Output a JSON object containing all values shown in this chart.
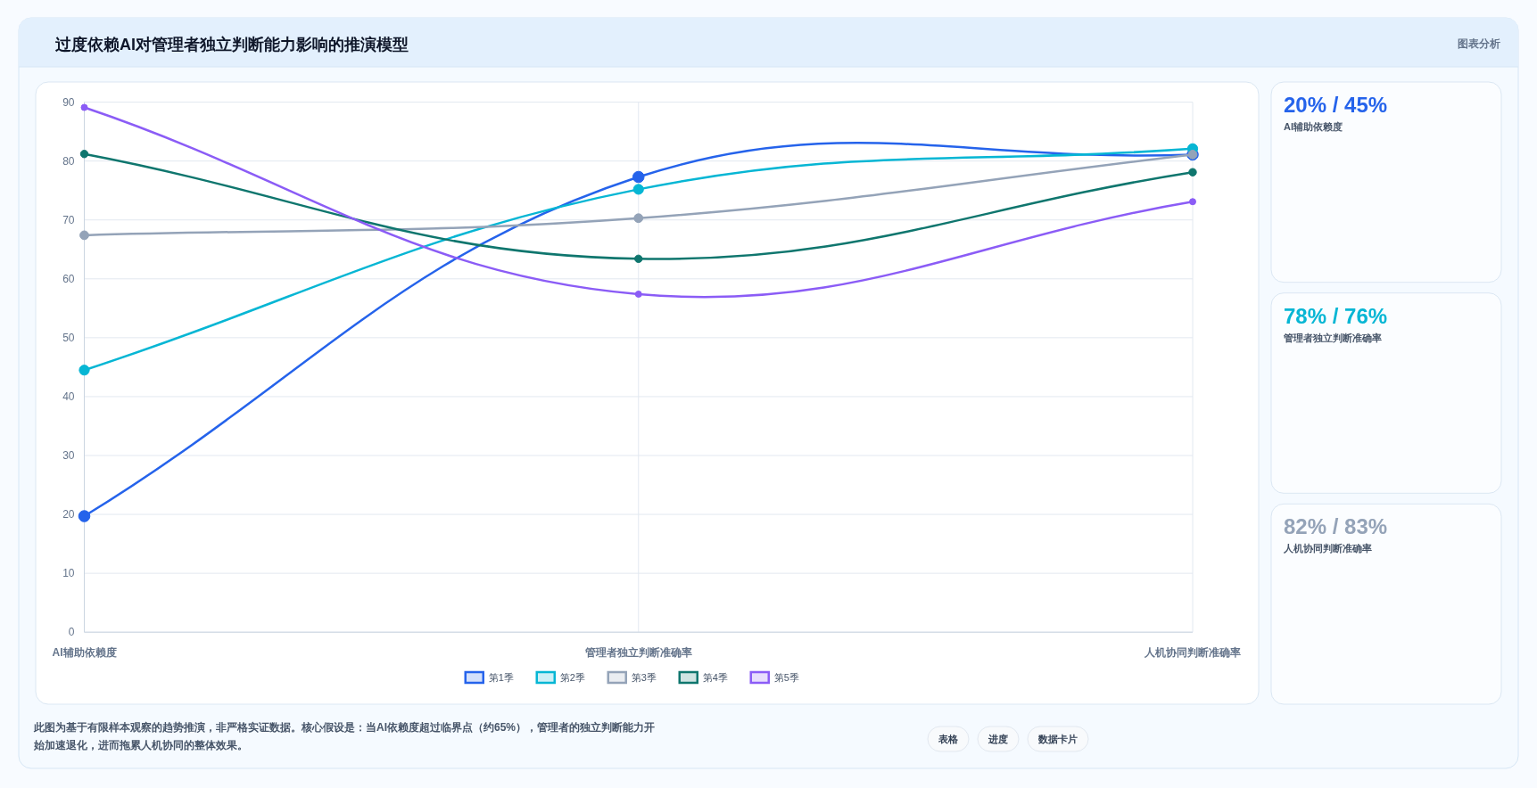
{
  "chart_data": [
    {
      "type": "line",
      "title": "过度依赖AI对管理者独立判断能力影响的推演模型",
      "categories": [
        "AI辅助依赖度",
        "管理者独立判断准确率",
        "人机协同判断准确率"
      ],
      "series": [
        {
          "name": "第1季",
          "color": "#2563eb",
          "values": [
            19.7,
            77.3,
            81.1
          ]
        },
        {
          "name": "第2季",
          "color": "#06b6d4",
          "values": [
            44.5,
            75.2,
            82.1
          ]
        },
        {
          "name": "第3季",
          "color": "#94a3b8",
          "values": [
            67.4,
            70.3,
            81.1
          ]
        },
        {
          "name": "第4季",
          "color": "#0f766e",
          "values": [
            81.2,
            63.4,
            78.1
          ]
        },
        {
          "name": "第5季",
          "color": "#8b5cf6",
          "values": [
            89.1,
            57.4,
            73.1
          ]
        }
      ],
      "ylim": [
        0,
        90
      ],
      "yticks": [
        0,
        10,
        20,
        30,
        40,
        50,
        60,
        70,
        80,
        90
      ],
      "grid": true,
      "legend": "bottom",
      "marker": "circle",
      "line_style": "solid",
      "annotations": [
        "图表分析",
        "此图为基于有限样本观察的趋势推演，非严格实证数据。核心假设是：当AI依赖度超过临界点（约65%），管理者的独立判断能力开始加速退化，进而拖累人机协同的整体效果。",
        "表格",
        "进度",
        "数据卡片"
      ]
    },
    {
      "type": "other",
      "colors": [
        "#2563eb",
        "#06b6d4",
        "#94a3b8"
      ],
      "annotations": [
        "20% / 45%",
        "AI辅助依赖度",
        "78% / 76%",
        "管理者独立判断准确率",
        "82% / 83%",
        "人机协同判断准确率"
      ]
    }
  ]
}
